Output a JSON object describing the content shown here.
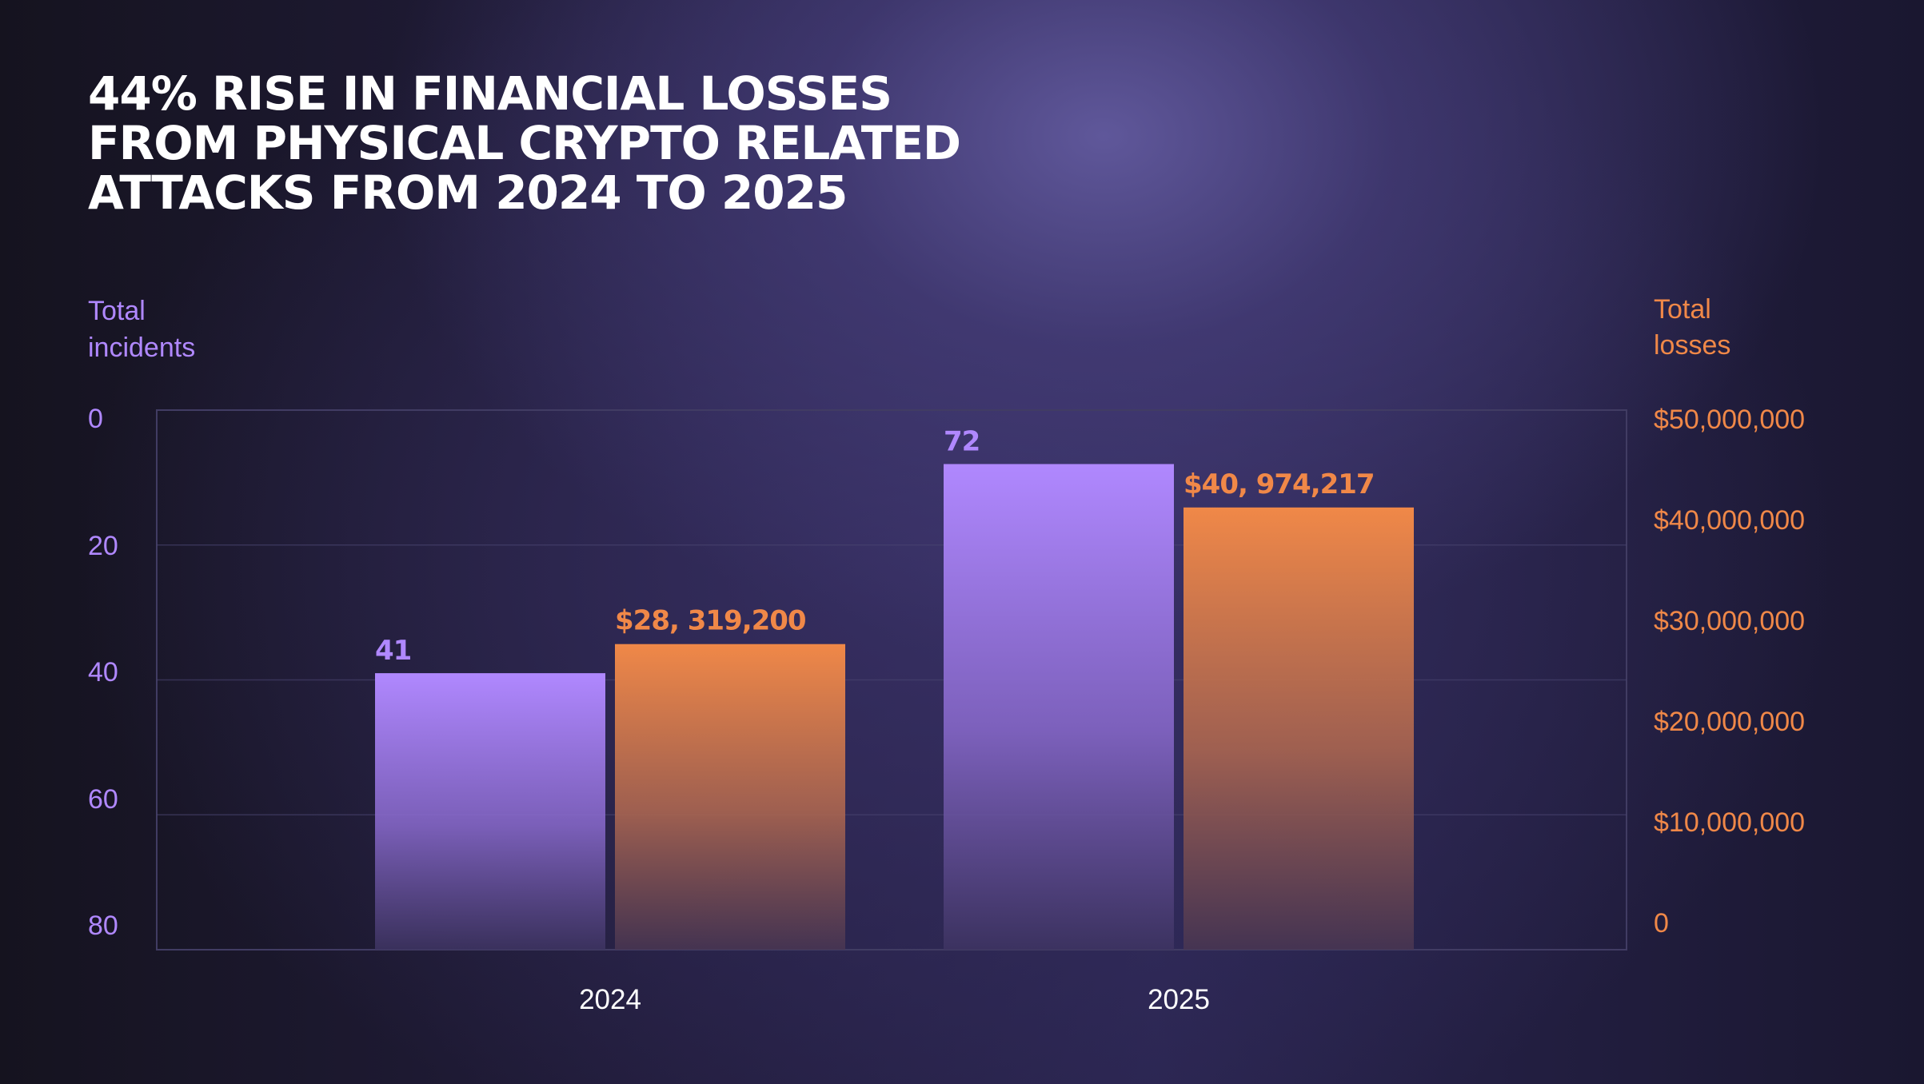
{
  "title_lines": [
    "44% RISE IN FINANCIAL LOSSES",
    "FROM PHYSICAL CRYPTO RELATED",
    "ATTACKS FROM 2024 TO 2025"
  ],
  "colors": {
    "incidents": "#b088ff",
    "losses": "#f08848",
    "gridline": "#4a4570",
    "text": "#ffffff"
  },
  "chart_data": {
    "type": "bar",
    "title": "44% RISE IN FINANCIAL LOSSES FROM PHYSICAL CRYPTO RELATED ATTACKS FROM 2024 TO 2025",
    "categories": [
      "2024",
      "2025"
    ],
    "series": [
      {
        "name": "Total incidents",
        "axis": "left",
        "values": [
          41,
          72
        ],
        "value_labels": [
          "41",
          "72"
        ]
      },
      {
        "name": "Total losses",
        "axis": "right",
        "values": [
          28319200,
          40974217
        ],
        "value_labels": [
          "$28, 319,200",
          "$40, 974,217"
        ]
      }
    ],
    "y_left": {
      "label_lines": [
        "Total",
        "incidents"
      ],
      "ylim": [
        0,
        80
      ],
      "ticks": [
        0,
        20,
        40,
        60,
        80
      ],
      "tick_labels": [
        "0",
        "20",
        "40",
        "60",
        "80"
      ]
    },
    "y_right": {
      "label_lines": [
        "Total",
        "losses"
      ],
      "ylim": [
        0,
        50000000
      ],
      "ticks": [
        0,
        10000000,
        20000000,
        30000000,
        40000000,
        50000000
      ],
      "tick_labels": [
        "0",
        "$10,000,000",
        "$20,000,000",
        "$30,000,000",
        "$40,000,000",
        "$50,000,000"
      ]
    },
    "grid": true,
    "legend": "none"
  }
}
